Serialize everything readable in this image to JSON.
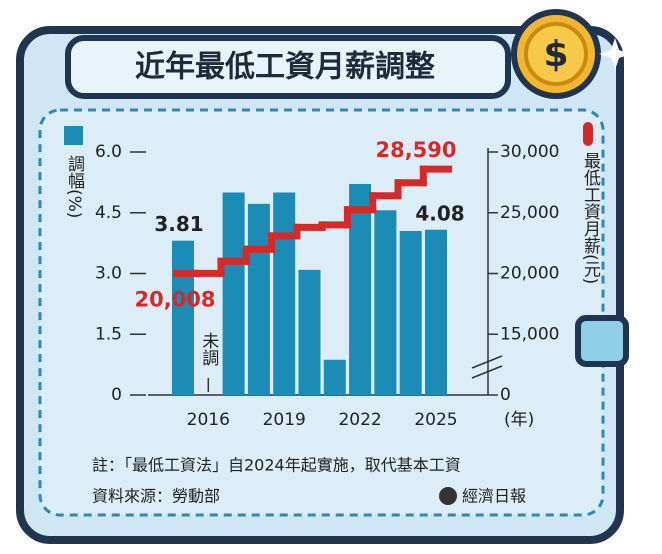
{
  "title": "近年最低工資月薪調整",
  "chart_data": {
    "type": "bar_line",
    "categories": [
      null,
      "2016",
      null,
      null,
      "2019",
      null,
      null,
      "2022",
      null,
      null,
      "2025"
    ],
    "x_unit": "(年)",
    "series": [
      {
        "name": "調幅(%)",
        "color": "#1a8cb5",
        "values": [
          3.81,
          null,
          5.0,
          4.72,
          5.0,
          3.09,
          0.87,
          5.21,
          4.56,
          4.05,
          4.08
        ],
        "value_labels": [
          "3.81",
          null,
          null,
          null,
          null,
          null,
          null,
          null,
          null,
          null,
          "4.08"
        ]
      },
      {
        "name": "最低工資月薪(元)",
        "color": "#d42a2a",
        "axis": "y2",
        "values": [
          20008,
          20008,
          21009,
          22000,
          23100,
          23800,
          24000,
          25250,
          26400,
          27470,
          28590
        ],
        "value_labels": [
          "20,008",
          null,
          null,
          null,
          null,
          null,
          null,
          null,
          null,
          null,
          "28,590"
        ]
      }
    ],
    "annotations": [
      {
        "index": 1,
        "text": "未調"
      }
    ],
    "ylim": [
      0,
      6
    ],
    "yticks": [
      0,
      1.5,
      {
        "value": 3,
        "label": "3.0"
      },
      4.5,
      {
        "value": 6,
        "label": "6.0"
      }
    ],
    "y2lim": [
      10000,
      30000
    ],
    "y2_break": true,
    "y2ticks": [
      0,
      {
        "value": 15000,
        "label": "15,000"
      },
      {
        "value": 20000,
        "label": "20,000"
      },
      {
        "value": 25000,
        "label": "25,000"
      },
      {
        "value": 30000,
        "label": "30,000"
      }
    ]
  },
  "note": "註：「最低工資法」自2024年起實施，取代基本工資",
  "source": "資料來源：勞動部",
  "publisher": "經濟日報"
}
